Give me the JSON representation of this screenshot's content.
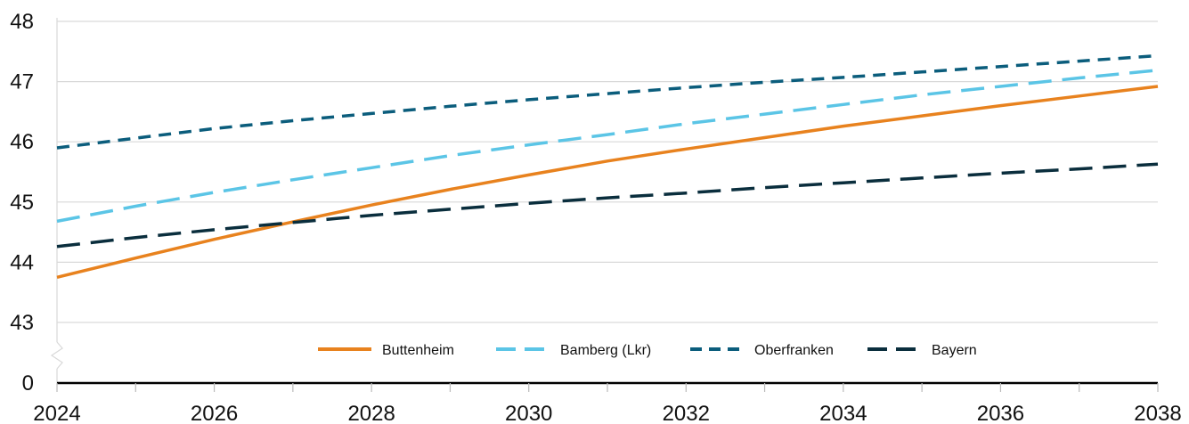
{
  "chart_data": {
    "type": "line",
    "title": "",
    "xlabel": "",
    "ylabel": "",
    "x": [
      2024,
      2025,
      2026,
      2027,
      2028,
      2029,
      2030,
      2031,
      2032,
      2033,
      2034,
      2035,
      2036,
      2037,
      2038
    ],
    "xlim": [
      2024,
      2038
    ],
    "ylim": [
      43,
      48
    ],
    "y_axis_break": true,
    "y_zero_label": "0",
    "x_tick_labels": [
      "2024",
      "2026",
      "2028",
      "2030",
      "2032",
      "2034",
      "2036",
      "2038"
    ],
    "y_tick_labels": [
      "0",
      "43",
      "44",
      "45",
      "46",
      "47",
      "48"
    ],
    "grid": "horizontal",
    "legend_position": "bottom-center",
    "series": [
      {
        "name": "Buttenheim",
        "color": "#E8821E",
        "style": "solid",
        "values": [
          43.75,
          44.07,
          44.38,
          44.67,
          44.95,
          45.21,
          45.45,
          45.68,
          45.88,
          46.07,
          46.26,
          46.43,
          46.6,
          46.76,
          46.92
        ]
      },
      {
        "name": "Bamberg (Lkr)",
        "color": "#5BC5E6",
        "style": "long-dash",
        "values": [
          44.68,
          44.93,
          45.16,
          45.37,
          45.57,
          45.77,
          45.95,
          46.12,
          46.3,
          46.46,
          46.62,
          46.78,
          46.92,
          47.06,
          47.19
        ]
      },
      {
        "name": "Oberfranken",
        "color": "#0B5D7C",
        "style": "dash",
        "values": [
          45.9,
          46.06,
          46.22,
          46.35,
          46.47,
          46.59,
          46.7,
          46.8,
          46.9,
          46.99,
          47.07,
          47.16,
          47.25,
          47.34,
          47.43
        ]
      },
      {
        "name": "Bayern",
        "color": "#0A2E3D",
        "style": "long-dash",
        "values": [
          44.26,
          44.41,
          44.54,
          44.66,
          44.78,
          44.88,
          44.98,
          45.07,
          45.15,
          45.24,
          45.32,
          45.4,
          45.48,
          45.55,
          45.63
        ]
      }
    ]
  }
}
